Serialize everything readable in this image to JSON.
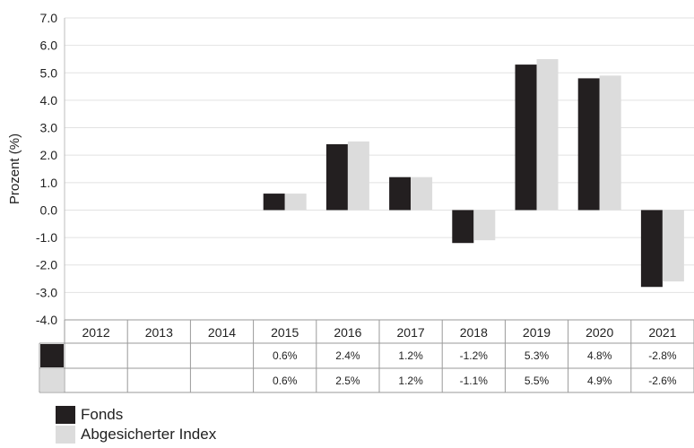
{
  "chart_data": {
    "type": "bar",
    "ylabel": "Prozent (%)",
    "ylim": [
      -4.0,
      7.0
    ],
    "ytick_step": 1.0,
    "grid": true,
    "categories": [
      "2012",
      "2013",
      "2014",
      "2015",
      "2016",
      "2017",
      "2018",
      "2019",
      "2020",
      "2021"
    ],
    "series": [
      {
        "name": "Fonds",
        "color": "#231f20",
        "values": [
          null,
          null,
          null,
          0.6,
          2.4,
          1.2,
          -1.2,
          5.3,
          4.8,
          -2.8
        ],
        "table_labels": [
          "",
          "",
          "",
          "0.6%",
          "2.4%",
          "1.2%",
          "-1.2%",
          "5.3%",
          "4.8%",
          "-2.8%"
        ]
      },
      {
        "name": "Abgesicherter Index",
        "color": "#dcdcdc",
        "values": [
          null,
          null,
          null,
          0.6,
          2.5,
          1.2,
          -1.1,
          5.5,
          4.9,
          -2.6
        ],
        "table_labels": [
          "",
          "",
          "",
          "0.6%",
          "2.5%",
          "1.2%",
          "-1.1%",
          "5.5%",
          "4.9%",
          "-2.6%"
        ]
      }
    ],
    "legend_position": "bottom-left"
  }
}
